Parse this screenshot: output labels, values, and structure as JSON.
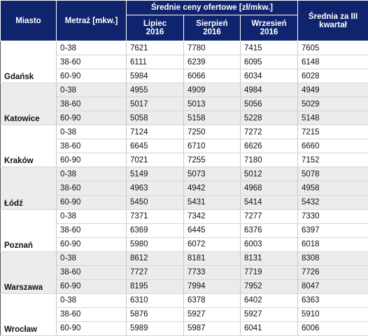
{
  "header": {
    "city": "Miasto",
    "size": "Metraż [mkw.]",
    "avg_group": "Średnie ceny ofertowe [zł/mkw.]",
    "months": [
      "Lipiec 2016",
      "Sierpień 2016",
      "Wrzesień 2016"
    ],
    "quarter": "Średnia za III kwartał"
  },
  "groups": [
    {
      "city": "Gdańsk",
      "rows": [
        [
          "0-38",
          7621,
          7780,
          7415,
          7605
        ],
        [
          "38-60",
          6111,
          6239,
          6095,
          6148
        ],
        [
          "60-90",
          5984,
          6066,
          6034,
          6028
        ]
      ]
    },
    {
      "city": "Katowice",
      "rows": [
        [
          "0-38",
          4955,
          4909,
          4984,
          4949
        ],
        [
          "38-60",
          5017,
          5013,
          5056,
          5029
        ],
        [
          "60-90",
          5058,
          5158,
          5228,
          5148
        ]
      ]
    },
    {
      "city": "Kraków",
      "rows": [
        [
          "0-38",
          7124,
          7250,
          7272,
          7215
        ],
        [
          "38-60",
          6645,
          6710,
          6626,
          6660
        ],
        [
          "60-90",
          7021,
          7255,
          7180,
          7152
        ]
      ]
    },
    {
      "city": "Łódź",
      "rows": [
        [
          "0-38",
          5149,
          5073,
          5012,
          5078
        ],
        [
          "38-60",
          4963,
          4942,
          4968,
          4958
        ],
        [
          "60-90",
          5450,
          5431,
          5414,
          5432
        ]
      ]
    },
    {
      "city": "Poznań",
      "rows": [
        [
          "0-38",
          7371,
          7342,
          7277,
          7330
        ],
        [
          "38-60",
          6369,
          6445,
          6376,
          6397
        ],
        [
          "60-90",
          5980,
          6072,
          6003,
          6018
        ]
      ]
    },
    {
      "city": "Warszawa",
      "rows": [
        [
          "0-38",
          8612,
          8181,
          8131,
          8308
        ],
        [
          "38-60",
          7727,
          7733,
          7719,
          7726
        ],
        [
          "60-90",
          8195,
          7994,
          7952,
          8047
        ]
      ]
    },
    {
      "city": "Wrocław",
      "rows": [
        [
          "0-38",
          6310,
          6378,
          6402,
          6363
        ],
        [
          "38-60",
          5876,
          5927,
          5927,
          5910
        ],
        [
          "60-90",
          5989,
          5987,
          6041,
          6006
        ]
      ]
    }
  ]
}
